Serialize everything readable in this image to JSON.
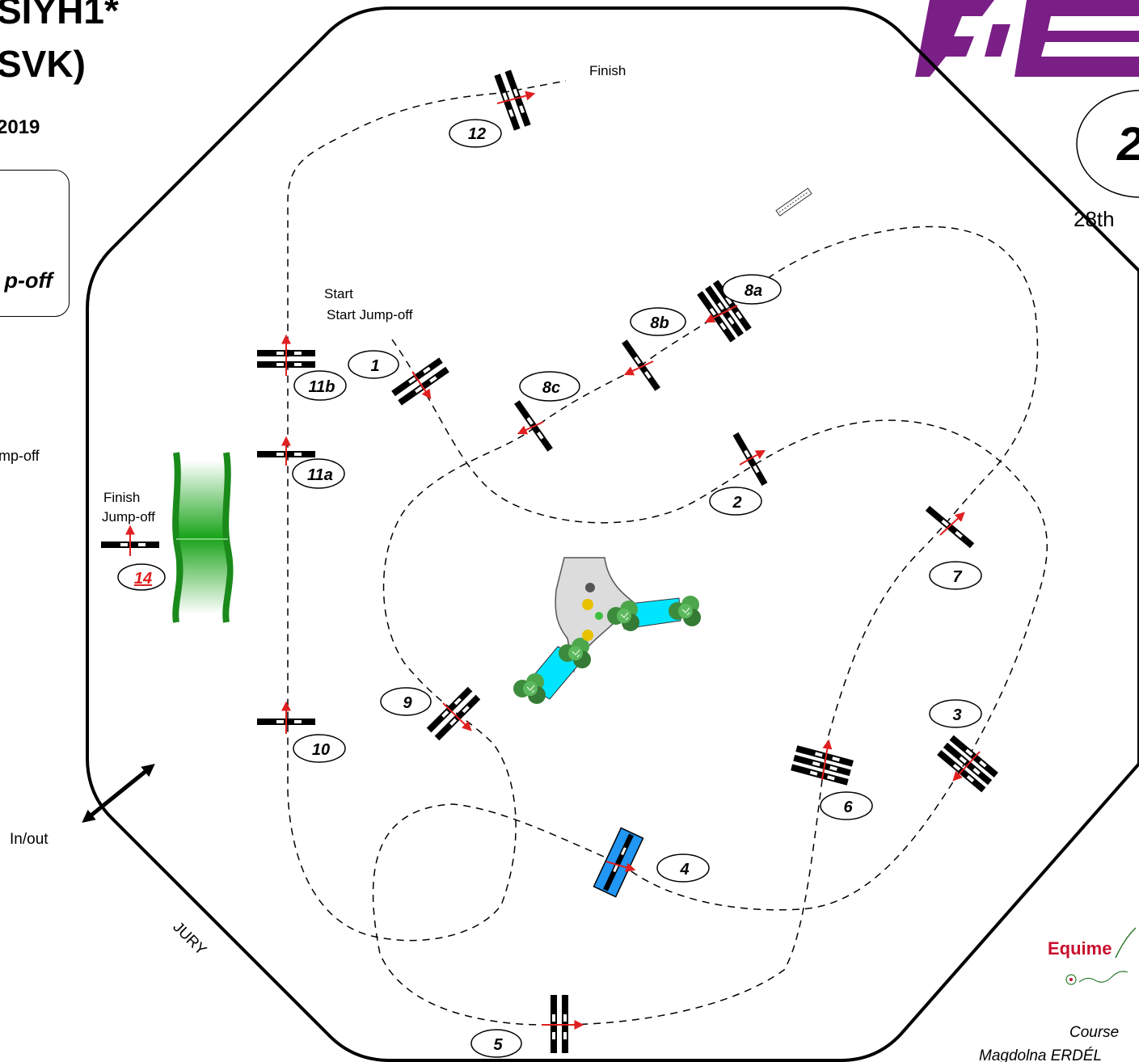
{
  "header": {
    "title_line1": "SIYH1*",
    "title_line2": "SVK)",
    "date_fragment": "2019",
    "box_text": "p-off",
    "side_text": "mp-off"
  },
  "right_panel": {
    "round_number": "2",
    "date": "28th"
  },
  "labels": {
    "finish": "Finish",
    "start": "Start",
    "start_jumpoff": "Start Jump-off",
    "finish_jumpoff_1": "Finish",
    "finish_jumpoff_2": "Jump-off",
    "in_out": "In/out",
    "jury": "JURY"
  },
  "obstacles": {
    "o1": "1",
    "o2": "2",
    "o3": "3",
    "o4": "4",
    "o5": "5",
    "o6": "6",
    "o7": "7",
    "o8a": "8a",
    "o8b": "8b",
    "o8c": "8c",
    "o9": "9",
    "o10": "10",
    "o11a": "11a",
    "o11b": "11b",
    "o12": "12",
    "o14": "14"
  },
  "sponsor": {
    "brand": "Equime",
    "course_line": "Course",
    "designer": "Magdolna ERDÉL"
  },
  "colors": {
    "fei_purple": "#7a1f86",
    "water": "#00e5ff",
    "open_water": "#2196f3",
    "hedge": "#1a8a1a",
    "arrow_red": "#e02020",
    "equime_red": "#c8102e"
  }
}
